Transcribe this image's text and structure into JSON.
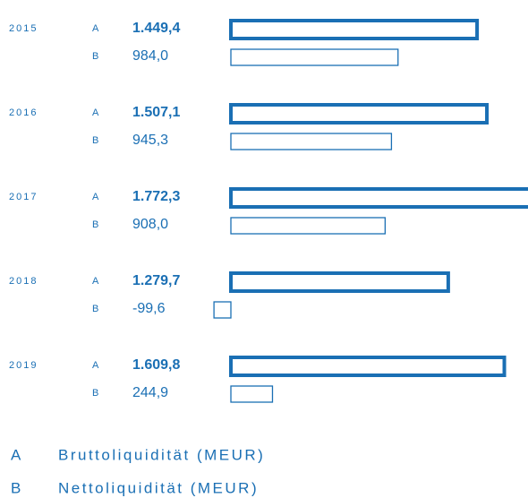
{
  "chart_data": {
    "type": "bar",
    "orientation": "horizontal",
    "categories": [
      "2015",
      "2016",
      "2017",
      "2018",
      "2019"
    ],
    "series": [
      {
        "key": "A",
        "name": "Bruttoliquidität (MEUR)",
        "color": "#1a6fb4",
        "values": [
          1449.4,
          1507.1,
          1772.3,
          1279.7,
          1609.8
        ],
        "value_labels": [
          "1.449,4",
          "1.507,1",
          "1.772,3",
          "1.279,7",
          "1.609,8"
        ]
      },
      {
        "key": "B",
        "name": "Nettoliquidität (MEUR)",
        "color": "#1a6fb4",
        "values": [
          984.0,
          945.3,
          908.0,
          -99.6,
          244.9
        ],
        "value_labels": [
          "984,0",
          "945,3",
          "908,0",
          "-99,6",
          "244,9"
        ]
      }
    ]
  }
}
